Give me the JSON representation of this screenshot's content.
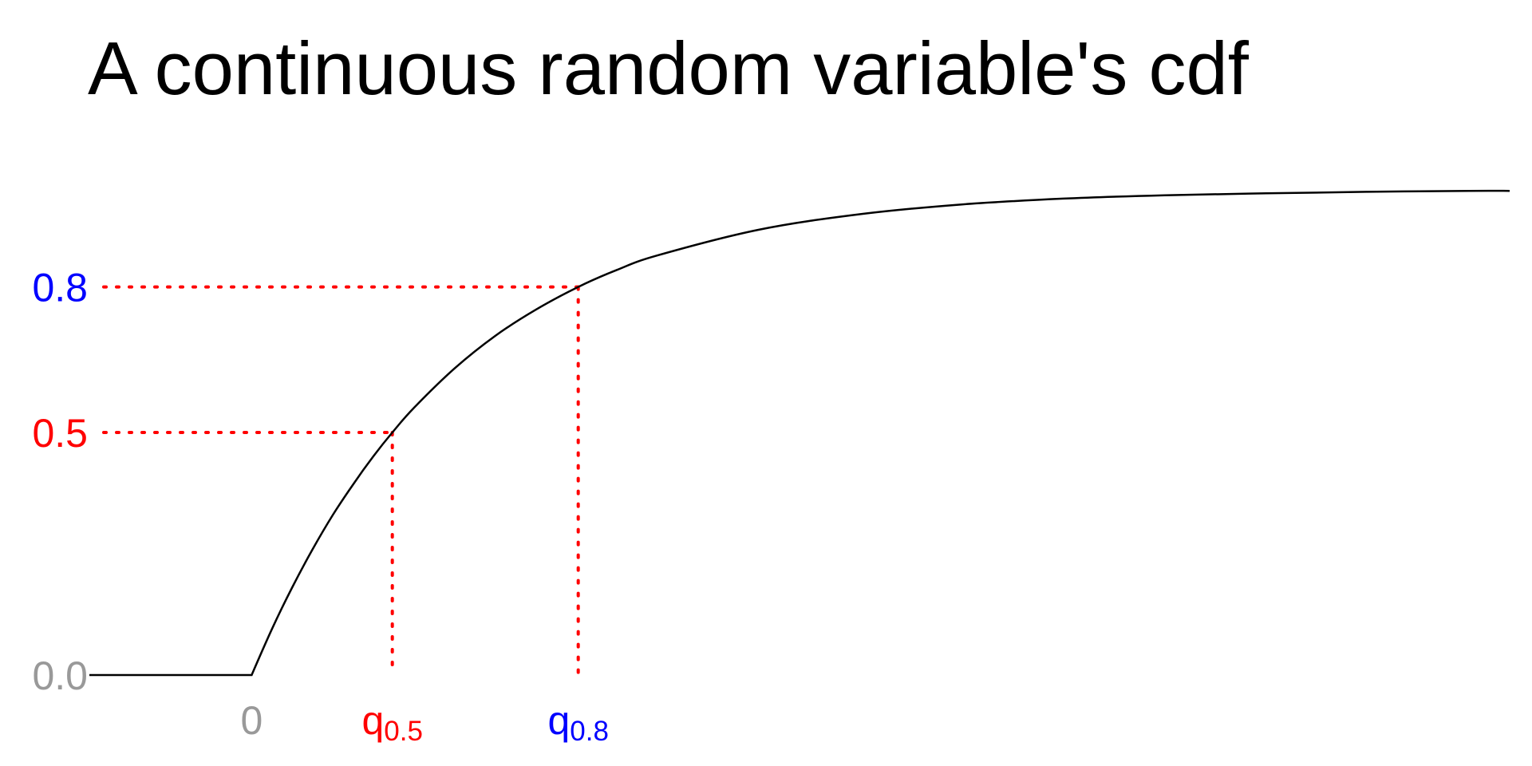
{
  "chart_data": {
    "type": "line",
    "title": "A continuous random variable's cdf",
    "xlabel": "",
    "ylabel": "",
    "grid": false,
    "ylim": [
      0,
      1
    ],
    "colors": {
      "curve": "#000000",
      "guide": "#ff0000",
      "gray": "#999999",
      "red": "#ff0000",
      "blue": "#0000ff"
    },
    "y_ticks": [
      {
        "value": 0.0,
        "label": "0.0",
        "color": "#999999"
      },
      {
        "value": 0.5,
        "label": "0.5",
        "color": "#ff0000"
      },
      {
        "value": 0.8,
        "label": "0.8",
        "color": "#0000ff"
      }
    ],
    "x_ticks": [
      {
        "value": 0,
        "base": "0",
        "sub": "",
        "color": "#999999"
      },
      {
        "value": 0.6931,
        "base": "q",
        "sub": "0.5",
        "color": "#ff0000"
      },
      {
        "value": 1.6094,
        "base": "q",
        "sub": "0.8",
        "color": "#0000ff"
      }
    ],
    "series": [
      {
        "x": [
          -0.8,
          0,
          0.1,
          0.2,
          0.3,
          0.4,
          0.5,
          0.6,
          0.6931,
          0.8,
          1.0,
          1.2,
          1.4,
          1.6094,
          1.8,
          2.0,
          2.5,
          3.0,
          3.5,
          4.0,
          4.5,
          5.0,
          5.5,
          6.0,
          6.2
        ],
        "y": [
          0,
          0,
          0.095,
          0.181,
          0.259,
          0.33,
          0.393,
          0.451,
          0.5,
          0.551,
          0.632,
          0.699,
          0.753,
          0.8,
          0.835,
          0.865,
          0.918,
          0.95,
          0.97,
          0.982,
          0.989,
          0.993,
          0.996,
          0.998,
          0.998
        ]
      }
    ],
    "guides": [
      {
        "x": 0.6931,
        "y": 0.5
      },
      {
        "x": 1.6094,
        "y": 0.8
      }
    ]
  }
}
